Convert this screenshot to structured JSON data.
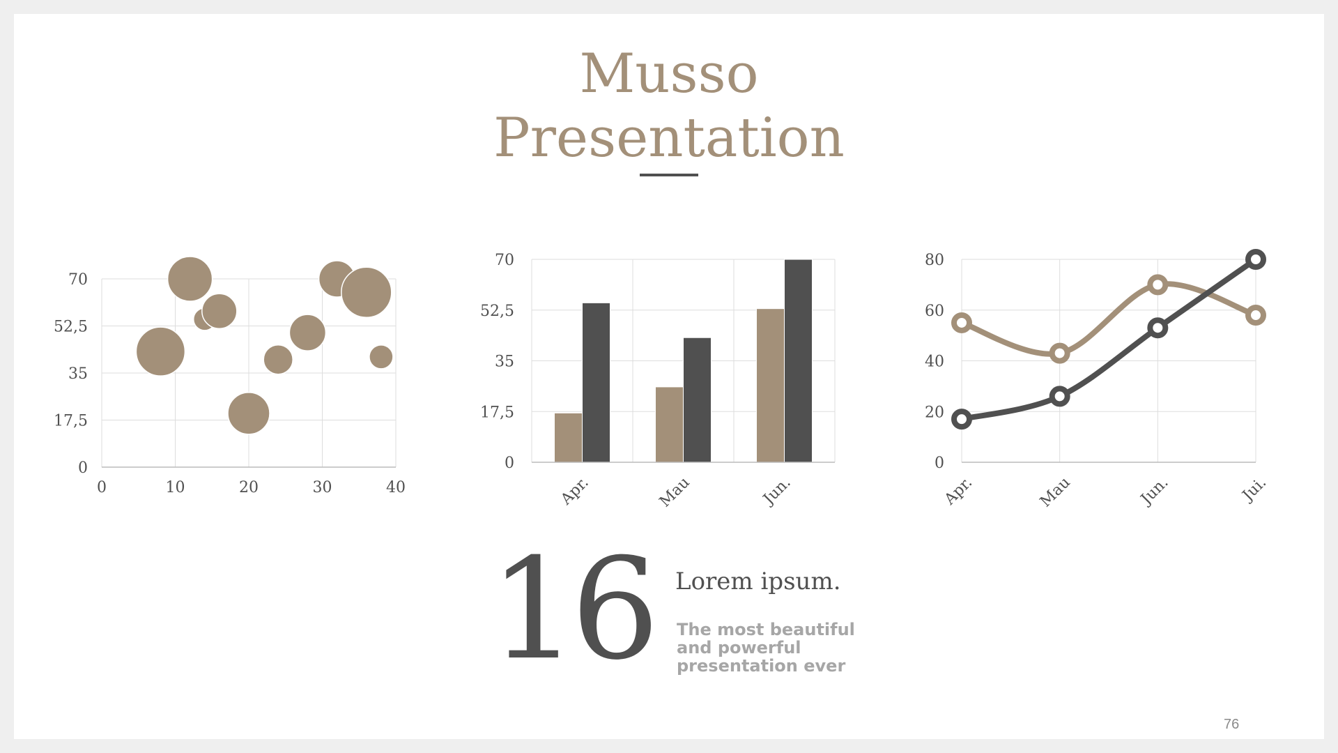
{
  "slide": {
    "title_line1": "Musso",
    "title_line2": "Presentation",
    "big_number": "16",
    "heading": "Lorem ipsum.",
    "subtext_lines": [
      "The most beautiful",
      "and powerful",
      "presentation ever"
    ],
    "page_number": "76"
  },
  "colors": {
    "accent": "#a39079",
    "dark": "#505050",
    "grid": "#dddddd",
    "muted_text": "#a6a6a6"
  },
  "chart_data": [
    {
      "type": "scatter",
      "subtype": "bubble",
      "x_ticks": [
        "0",
        "10",
        "20",
        "30",
        "40"
      ],
      "y_ticks": [
        "0",
        "17,5",
        "35",
        "52,5",
        "70"
      ],
      "xlim": [
        0,
        40
      ],
      "ylim": [
        0,
        70
      ],
      "grid": true,
      "points": [
        {
          "x": 8,
          "y": 43,
          "size": 35
        },
        {
          "x": 12,
          "y": 70,
          "size": 32
        },
        {
          "x": 14,
          "y": 55,
          "size": 16
        },
        {
          "x": 16,
          "y": 58,
          "size": 25
        },
        {
          "x": 20,
          "y": 20,
          "size": 30
        },
        {
          "x": 24,
          "y": 40,
          "size": 21
        },
        {
          "x": 28,
          "y": 50,
          "size": 26
        },
        {
          "x": 32,
          "y": 70,
          "size": 26
        },
        {
          "x": 36,
          "y": 65,
          "size": 36
        },
        {
          "x": 38,
          "y": 41,
          "size": 17
        }
      ]
    },
    {
      "type": "bar",
      "categories": [
        "Apr.",
        "Mau",
        "Jun."
      ],
      "y_ticks": [
        "0",
        "17,5",
        "35",
        "52,5",
        "70"
      ],
      "ylim": [
        0,
        70
      ],
      "grid": true,
      "series": [
        {
          "values": [
            17,
            26,
            53
          ],
          "color": "#a39079"
        },
        {
          "values": [
            55,
            43,
            70
          ],
          "color": "#505050"
        }
      ]
    },
    {
      "type": "line",
      "categories": [
        "Apr.",
        "Mau",
        "Jun.",
        "Jui."
      ],
      "y_ticks": [
        "0",
        "20",
        "40",
        "60",
        "80"
      ],
      "ylim": [
        0,
        80
      ],
      "grid": true,
      "smooth": true,
      "series": [
        {
          "values": [
            55,
            43,
            70,
            58
          ],
          "color": "#a39079"
        },
        {
          "values": [
            17,
            26,
            53,
            80
          ],
          "color": "#505050"
        }
      ]
    }
  ]
}
